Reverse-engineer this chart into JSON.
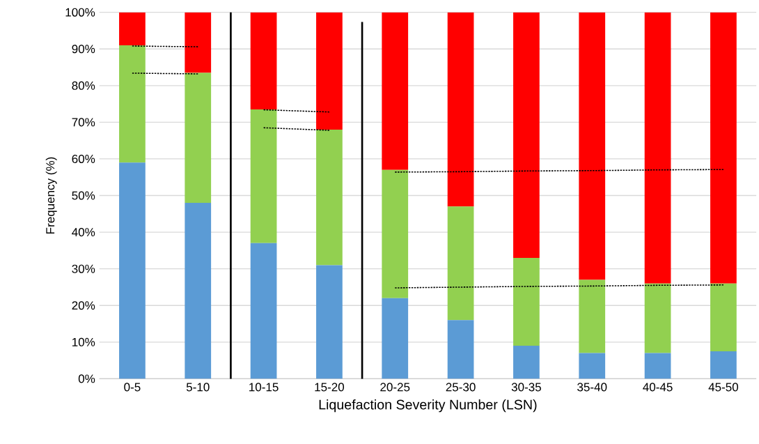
{
  "chart_data": {
    "type": "bar",
    "stacked": true,
    "xlabel": "Liquefaction Severity Number (LSN)",
    "ylabel": "Frequency (%)",
    "categories": [
      "0-5",
      "5-10",
      "10-15",
      "15-20",
      "20-25",
      "25-30",
      "30-35",
      "35-40",
      "40-45",
      "45-50"
    ],
    "ylim": [
      0,
      100
    ],
    "yticks": [
      {
        "value": 0,
        "label": "0%"
      },
      {
        "value": 10,
        "label": "10%"
      },
      {
        "value": 20,
        "label": "20%"
      },
      {
        "value": 30,
        "label": "30%"
      },
      {
        "value": 40,
        "label": "40%"
      },
      {
        "value": 50,
        "label": "50%"
      },
      {
        "value": 60,
        "label": "60%"
      },
      {
        "value": 70,
        "label": "70%"
      },
      {
        "value": 80,
        "label": "80%"
      },
      {
        "value": 90,
        "label": "90%"
      },
      {
        "value": 100,
        "label": "100%"
      }
    ],
    "grid": "y",
    "series": [
      {
        "color": "#5b9bd5",
        "values": [
          59,
          48,
          37,
          31,
          22,
          16,
          9,
          7,
          7,
          7.5
        ]
      },
      {
        "color": "#92d050",
        "values": [
          32,
          35.5,
          36.5,
          37,
          35,
          31,
          24,
          20,
          19,
          18.5
        ]
      },
      {
        "color": "#ff0000",
        "values": [
          9,
          16.5,
          26.5,
          32,
          43,
          53,
          67,
          73,
          74,
          74
        ]
      },
      {
        "type": "line",
        "color": "#000000",
        "line_style": "dashed",
        "values": [
          90.8,
          90.6,
          null,
          null,
          null,
          null,
          null,
          null,
          null,
          null
        ]
      },
      {
        "type": "line",
        "color": "#000000",
        "line_style": "dashed",
        "values": [
          83.4,
          83.2,
          null,
          null,
          null,
          null,
          null,
          null,
          null,
          null
        ]
      },
      {
        "type": "line",
        "color": "#000000",
        "line_style": "dashed",
        "values": [
          null,
          null,
          73.4,
          72.8,
          null,
          null,
          null,
          null,
          null,
          null
        ]
      },
      {
        "type": "line",
        "color": "#000000",
        "line_style": "dashed",
        "values": [
          null,
          null,
          68.5,
          67.8,
          null,
          null,
          null,
          null,
          null,
          null
        ]
      },
      {
        "type": "line",
        "color": "#000000",
        "line_style": "dashed",
        "values": [
          null,
          null,
          null,
          null,
          56.4,
          56.5,
          56.7,
          56.8,
          57.0,
          57.1
        ]
      },
      {
        "type": "line",
        "color": "#000000",
        "line_style": "dashed",
        "values": [
          null,
          null,
          null,
          null,
          24.8,
          25.0,
          25.2,
          25.3,
          25.5,
          25.6
        ]
      }
    ]
  }
}
